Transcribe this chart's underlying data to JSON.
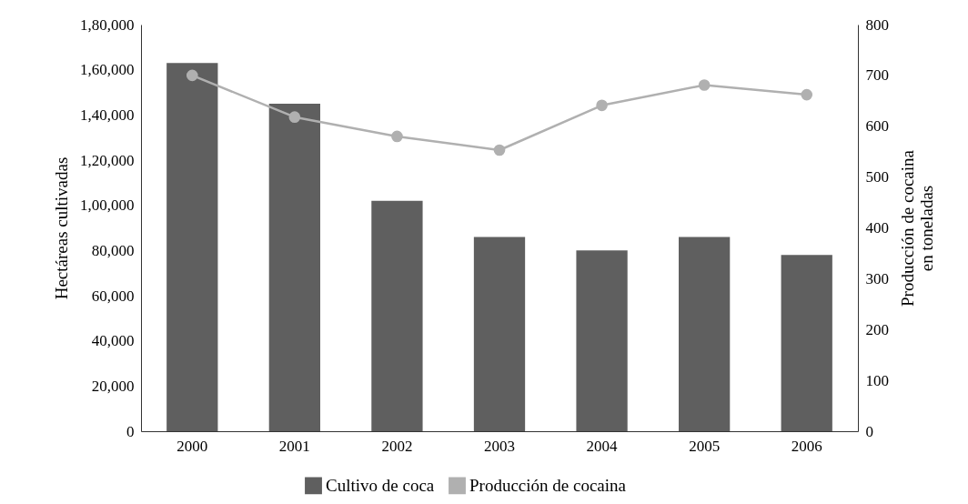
{
  "chart_data": {
    "type": "bar",
    "xlabel": null,
    "ylabel": "Hectáreas cultivadas",
    "y2label": "Producción de cocaina\nen toneladas",
    "categories": [
      "2000",
      "2001",
      "2002",
      "2003",
      "2004",
      "2005",
      "2006"
    ],
    "series": [
      {
        "name": "Cultivo de coca",
        "color": "#5f5f5f",
        "values": [
          163000,
          145000,
          102000,
          86000,
          80000,
          86000,
          78000
        ]
      },
      {
        "name": "Producción de cocaina",
        "type": "line",
        "axis": "y2",
        "color": "#b0b0b0",
        "marker": "circle",
        "values": [
          700,
          618,
          580,
          553,
          641,
          681,
          662
        ]
      }
    ],
    "ylim": [
      0,
      180000
    ],
    "yticks": [
      0,
      {
        "value": 20000,
        "label": "20,000"
      },
      {
        "value": 40000,
        "label": "40,000"
      },
      {
        "value": 60000,
        "label": "60,000"
      },
      {
        "value": 80000,
        "label": "80,000"
      },
      {
        "value": 100000,
        "label": "1,00,000"
      },
      {
        "value": 120000,
        "label": "1,20,000"
      },
      {
        "value": 140000,
        "label": "1,40,000"
      },
      {
        "value": 160000,
        "label": "1,60,000"
      },
      {
        "value": 180000,
        "label": "1,80,000"
      }
    ],
    "y2lim": [
      0,
      800
    ],
    "y2ticks": [
      0,
      100,
      200,
      300,
      400,
      500,
      600,
      700,
      800
    ],
    "legend": "bottom",
    "grid": false
  }
}
